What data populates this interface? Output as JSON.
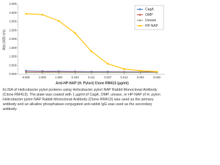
{
  "chart_data": {
    "type": "line",
    "ylabel": "Abs (405 nm)",
    "xlabel": "Anti-HP-NAP (H. Pylori) Clone RM413 (µg/ml)",
    "categories": [
      "9.000",
      "3.000",
      "1.000",
      "0.333",
      "0.111",
      "0.037",
      "0.012",
      "0.004",
      "0.000"
    ],
    "series": [
      {
        "name": "CagA",
        "color": "#4472c4",
        "values": [
          0.2,
          0.18,
          0.17,
          0.16,
          0.15,
          0.15,
          0.14,
          0.14,
          0.14
        ]
      },
      {
        "name": "OMP",
        "color": "#c0504d",
        "values": [
          0.15,
          0.14,
          0.13,
          0.13,
          0.12,
          0.12,
          0.12,
          0.12,
          0.12
        ]
      },
      {
        "name": "Urease",
        "color": "#8c9a7a",
        "values": [
          0.1,
          0.1,
          0.1,
          0.1,
          0.1,
          0.1,
          0.1,
          0.1,
          0.1
        ]
      },
      {
        "name": "HP-NAP",
        "color": "#ffc000",
        "values": [
          3.45,
          3.4,
          3.05,
          2.35,
          1.3,
          0.6,
          0.3,
          0.2,
          0.15
        ]
      }
    ],
    "ylim": [
      0,
      4
    ],
    "yticks": [
      {
        "value": 0,
        "label": "0.000"
      },
      {
        "value": 0.5,
        "label": "0.500"
      },
      {
        "value": 1,
        "label": "1.000"
      },
      {
        "value": 1.5,
        "label": "1.500"
      },
      {
        "value": 2,
        "label": "2.000"
      },
      {
        "value": 2.5,
        "label": "2.500"
      },
      {
        "value": 3,
        "label": "3.000"
      },
      {
        "value": 3.5,
        "label": "3.500"
      },
      {
        "value": 4,
        "label": "4.000"
      }
    ],
    "legend": "upper right"
  },
  "caption": "ELISA of Helicobacter pylori proteins using Helicobacter pylori NAP Rabbit Monoclonal Antibody (Clone RM413). The plate was coated with 1 µg/ml of CagA, OMP, urease, or HP-NAP of H. pylori. Helicobacter pylori NAP Rabbit Monoclonal Antibody (Clone RM413) was used as the primary antibody and an alkaline phosphatase-conjugated anti-rabbit IgG was used as the secondary antibody."
}
